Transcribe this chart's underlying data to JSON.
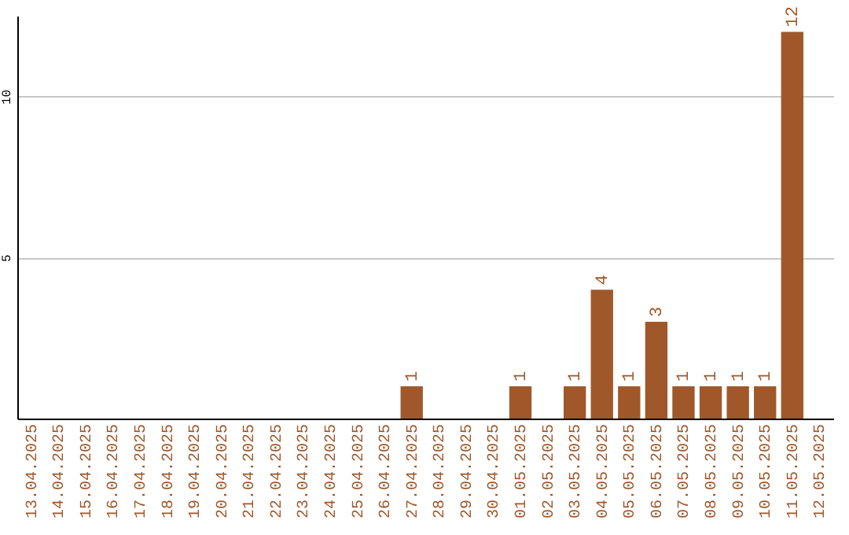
{
  "chart_data": {
    "type": "bar",
    "categories": [
      "13.04.2025",
      "14.04.2025",
      "15.04.2025",
      "16.04.2025",
      "17.04.2025",
      "18.04.2025",
      "19.04.2025",
      "20.04.2025",
      "21.04.2025",
      "22.04.2025",
      "23.04.2025",
      "24.04.2025",
      "25.04.2025",
      "26.04.2025",
      "27.04.2025",
      "28.04.2025",
      "29.04.2025",
      "30.04.2025",
      "01.05.2025",
      "02.05.2025",
      "03.05.2025",
      "04.05.2025",
      "05.05.2025",
      "06.05.2025",
      "07.05.2025",
      "08.05.2025",
      "09.05.2025",
      "10.05.2025",
      "11.05.2025",
      "12.05.2025"
    ],
    "values": [
      0,
      0,
      0,
      0,
      0,
      0,
      0,
      0,
      0,
      0,
      0,
      0,
      0,
      0,
      1,
      0,
      0,
      0,
      1,
      0,
      1,
      4,
      1,
      3,
      1,
      1,
      1,
      1,
      12,
      0
    ],
    "value_labels": [
      null,
      null,
      null,
      null,
      null,
      null,
      null,
      null,
      null,
      null,
      null,
      null,
      null,
      null,
      "1",
      null,
      null,
      null,
      "1",
      null,
      "1",
      "4",
      "1",
      "3",
      "1",
      "1",
      "1",
      "1",
      "12",
      null
    ],
    "color": "#a0582a",
    "ylim": [
      0,
      12.5
    ],
    "yticks": [
      5,
      10
    ],
    "grid": "y"
  }
}
